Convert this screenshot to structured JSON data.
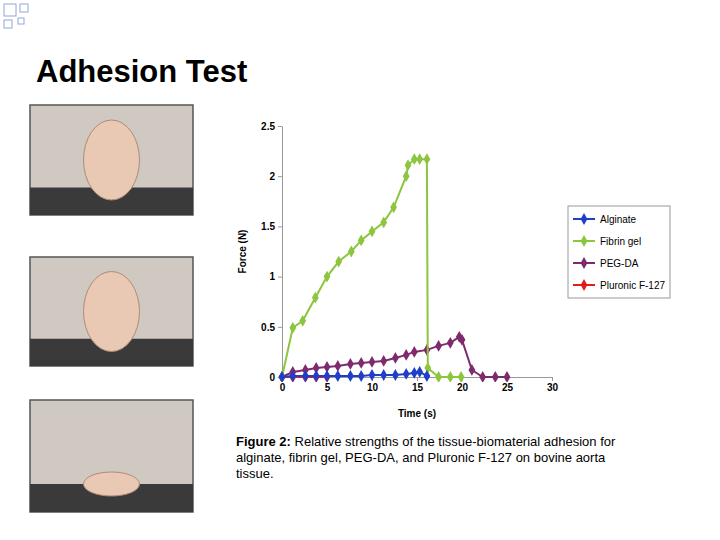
{
  "slide": {
    "title": "Adhesion Test"
  },
  "chart_data": {
    "type": "line",
    "x_label": "Time (s)",
    "y_label": "Force (N)",
    "xlim": [
      0,
      30
    ],
    "xticks": [
      0,
      5,
      10,
      15,
      20,
      25,
      30
    ],
    "ylim": [
      0,
      2.5
    ],
    "yticks": [
      0,
      0.5,
      1,
      1.5,
      2,
      2.5
    ],
    "grid": false,
    "legend": "right",
    "marker": "diamond",
    "series": [
      {
        "name": "Alginate",
        "color": "#1f3fc8",
        "x": [
          0,
          1.2,
          2.6,
          3.8,
          5,
          6.2,
          7.6,
          8.8,
          10,
          11.3,
          12.6,
          13.8,
          14.7,
          15.3,
          16.1
        ],
        "values": [
          0,
          0.01,
          0.01,
          0.01,
          0.01,
          0.01,
          0.01,
          0.01,
          0.02,
          0.02,
          0.02,
          0.03,
          0.04,
          0.05,
          0.01
        ]
      },
      {
        "name": "Fibrin gel",
        "color": "#8cc63e",
        "x": [
          0,
          1.2,
          2.3,
          3.7,
          5,
          6.3,
          7.7,
          8.8,
          10,
          11.3,
          12.4,
          13.8,
          14.0,
          14.7,
          15.3,
          16.1,
          16.2,
          17.4,
          18.7,
          19.9
        ],
        "values": [
          0,
          0.49,
          0.56,
          0.79,
          1.0,
          1.15,
          1.25,
          1.36,
          1.45,
          1.54,
          1.69,
          2.0,
          2.11,
          2.17,
          2.17,
          2.17,
          0.09,
          0,
          0,
          0
        ]
      },
      {
        "name": "PEG-DA",
        "color": "#7e2b6e",
        "x": [
          0,
          1.2,
          2.6,
          3.8,
          5,
          6.2,
          7.6,
          8.8,
          10,
          11.3,
          12.6,
          13.8,
          14.7,
          16.1,
          17.4,
          18.7,
          19.7,
          20,
          21.1,
          22.3,
          23.7,
          25
        ],
        "values": [
          0,
          0.05,
          0.07,
          0.09,
          0.1,
          0.11,
          0.13,
          0.14,
          0.15,
          0.16,
          0.19,
          0.22,
          0.25,
          0.27,
          0.31,
          0.34,
          0.4,
          0.37,
          0.07,
          0,
          0,
          0
        ]
      },
      {
        "name": "Pluronic F-127",
        "color": "#e02020",
        "x": [
          0,
          1.2,
          2.6,
          3.8,
          5
        ],
        "values": [
          0,
          0,
          0,
          0,
          0
        ]
      }
    ],
    "caption": {
      "label": "Figure 2:",
      "lines": [
        "Relative strengths of the tissue-biomaterial adhesion for",
        "alginate, fibrin gel, PEG-DA, and Pluronic F-127 on bovine aorta",
        "tissue."
      ]
    }
  }
}
